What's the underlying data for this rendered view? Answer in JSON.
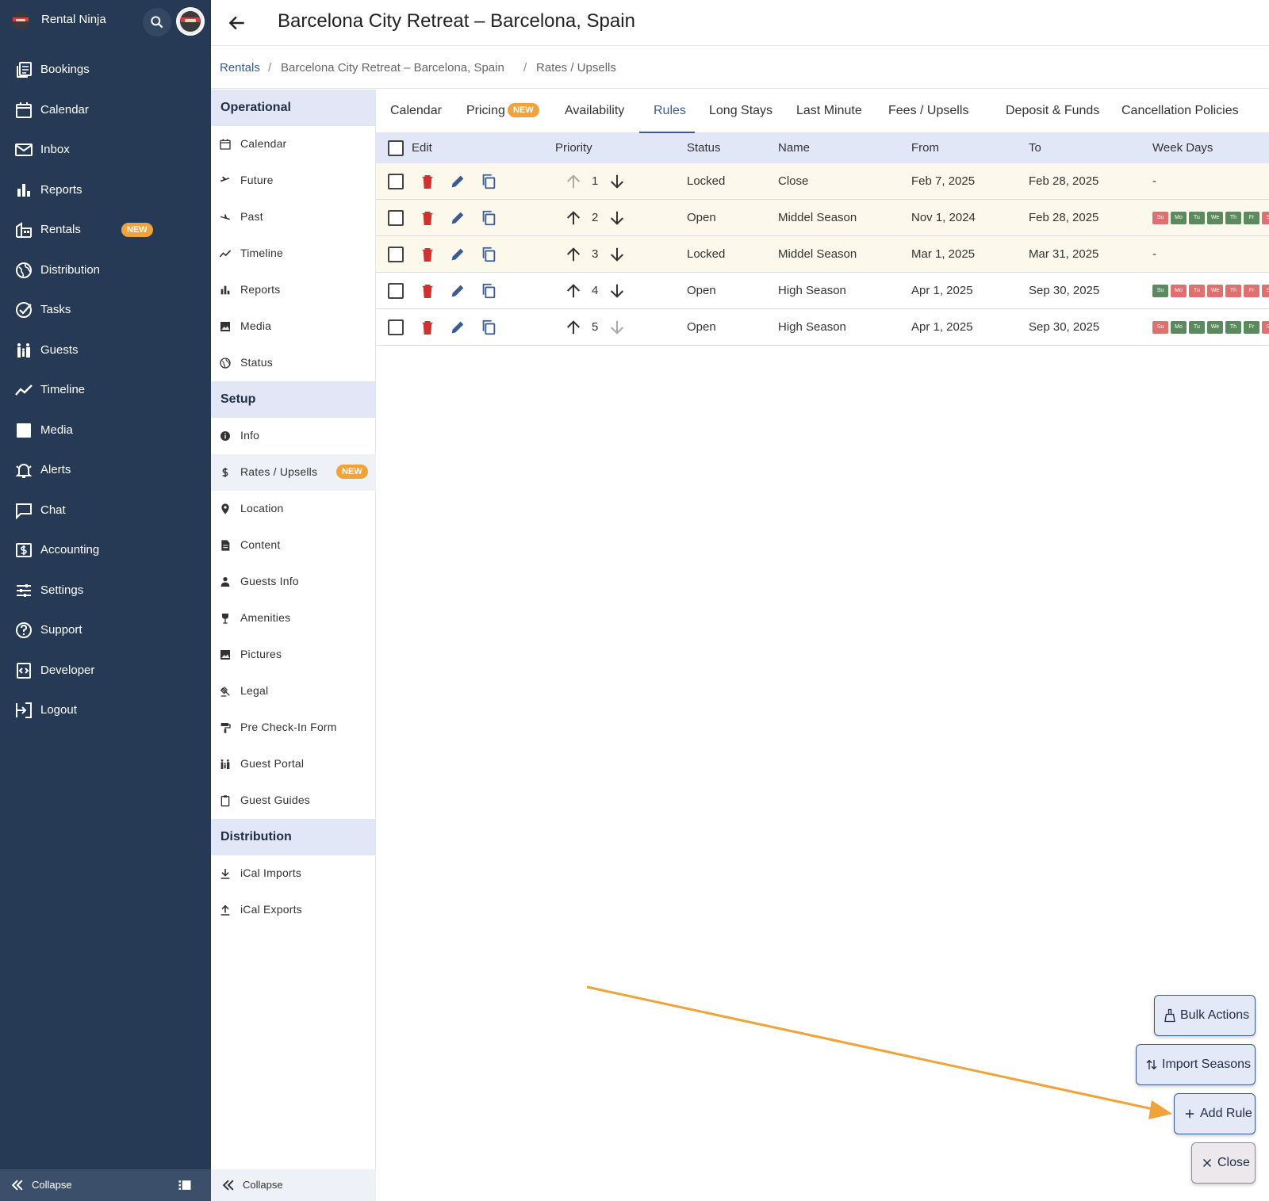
{
  "app": {
    "name": "Rental Ninja"
  },
  "nav": {
    "items": [
      {
        "label": "Bookings",
        "icon": "bookings-icon"
      },
      {
        "label": "Calendar",
        "icon": "calendar-icon"
      },
      {
        "label": "Inbox",
        "icon": "inbox-icon"
      },
      {
        "label": "Reports",
        "icon": "reports-icon"
      },
      {
        "label": "Rentals",
        "icon": "rentals-icon",
        "badge": "NEW"
      },
      {
        "label": "Distribution",
        "icon": "globe-icon"
      },
      {
        "label": "Tasks",
        "icon": "check-circle-icon"
      },
      {
        "label": "Guests",
        "icon": "guests-icon"
      },
      {
        "label": "Timeline",
        "icon": "timeline-icon"
      },
      {
        "label": "Media",
        "icon": "image-icon"
      },
      {
        "label": "Alerts",
        "icon": "bell-icon"
      },
      {
        "label": "Chat",
        "icon": "chat-icon"
      },
      {
        "label": "Accounting",
        "icon": "accounting-icon"
      },
      {
        "label": "Settings",
        "icon": "sliders-icon"
      },
      {
        "label": "Support",
        "icon": "help-icon"
      },
      {
        "label": "Developer",
        "icon": "developer-icon"
      },
      {
        "label": "Logout",
        "icon": "logout-icon"
      }
    ],
    "collapse_label": "Collapse"
  },
  "header": {
    "title": "Barcelona City Retreat – Barcelona, Spain"
  },
  "breadcrumb": [
    "Rentals",
    "Barcelona City Retreat – Barcelona, Spain",
    "Rates / Upsells"
  ],
  "subnav": {
    "sections": [
      {
        "title": "Operational",
        "items": [
          {
            "label": "Calendar",
            "icon": "calendar-icon"
          },
          {
            "label": "Future",
            "icon": "plane-takeoff-icon"
          },
          {
            "label": "Past",
            "icon": "plane-landing-icon"
          },
          {
            "label": "Timeline",
            "icon": "timeline-icon"
          },
          {
            "label": "Reports",
            "icon": "reports-icon"
          },
          {
            "label": "Media",
            "icon": "image-icon"
          },
          {
            "label": "Status",
            "icon": "globe-icon"
          }
        ]
      },
      {
        "title": "Setup",
        "items": [
          {
            "label": "Info",
            "icon": "info-icon"
          },
          {
            "label": "Rates / Upsells",
            "icon": "dollar-icon",
            "badge": "NEW",
            "active": true
          },
          {
            "label": "Location",
            "icon": "pin-icon"
          },
          {
            "label": "Content",
            "icon": "document-icon"
          },
          {
            "label": "Guests Info",
            "icon": "person-icon"
          },
          {
            "label": "Amenities",
            "icon": "wine-icon"
          },
          {
            "label": "Pictures",
            "icon": "image-icon"
          },
          {
            "label": "Legal",
            "icon": "gavel-icon"
          },
          {
            "label": "Pre Check-In Form",
            "icon": "paint-roller-icon"
          },
          {
            "label": "Guest Portal",
            "icon": "family-icon"
          },
          {
            "label": "Guest Guides",
            "icon": "clipboard-icon"
          }
        ]
      },
      {
        "title": "Distribution",
        "items": [
          {
            "label": "iCal Imports",
            "icon": "download-icon"
          },
          {
            "label": "iCal Exports",
            "icon": "upload-icon"
          }
        ]
      }
    ],
    "collapse_label": "Collapse"
  },
  "tabs": [
    {
      "label": "Calendar"
    },
    {
      "label": "Pricing",
      "badge": "NEW"
    },
    {
      "label": "Availability"
    },
    {
      "label": "Rules",
      "active": true
    },
    {
      "label": "Long Stays"
    },
    {
      "label": "Last Minute"
    },
    {
      "label": "Fees / Upsells"
    },
    {
      "label": "Deposit & Funds"
    },
    {
      "label": "Cancellation Policies"
    }
  ],
  "table": {
    "headers": {
      "edit": "Edit",
      "priority": "Priority",
      "status": "Status",
      "name": "Name",
      "from": "From",
      "to": "To",
      "weekdays": "Week Days"
    },
    "rows": [
      {
        "priority": "1",
        "status": "Locked",
        "name": "Close",
        "from": "Feb 7, 2025",
        "to": "Feb 28, 2025",
        "weekdays": "-",
        "days": []
      },
      {
        "priority": "2",
        "status": "Open",
        "name": "Middel Season",
        "from": "Nov 1, 2024",
        "to": "Feb 28, 2025",
        "weekdays": "",
        "days": [
          "off",
          "on",
          "on",
          "on",
          "on",
          "on",
          "off"
        ]
      },
      {
        "priority": "3",
        "status": "Locked",
        "name": "Middel Season",
        "from": "Mar 1, 2025",
        "to": "Mar 31, 2025",
        "weekdays": "-",
        "days": []
      },
      {
        "priority": "4",
        "status": "Open",
        "name": "High Season",
        "from": "Apr 1, 2025",
        "to": "Sep 30, 2025",
        "weekdays": "",
        "days": [
          "on",
          "off",
          "off",
          "off",
          "off",
          "off",
          "off"
        ]
      },
      {
        "priority": "5",
        "status": "Open",
        "name": "High Season",
        "from": "Apr 1, 2025",
        "to": "Sep 30, 2025",
        "weekdays": "",
        "days": [
          "off",
          "on",
          "on",
          "on",
          "on",
          "on",
          "off"
        ]
      }
    ],
    "day_labels": [
      "Su",
      "Mo",
      "Tu",
      "We",
      "Th",
      "Fr",
      "Sa"
    ]
  },
  "actions": {
    "bulk": "Bulk Actions",
    "import": "Import Seasons",
    "add": "Add Rule",
    "close": "Close"
  },
  "colors": {
    "nav_bg": "#273a55",
    "accent": "#3b5b93",
    "badge": "#f0a33a",
    "delete": "#d03030",
    "day_on": "#5b8a5e",
    "day_off": "#e07070",
    "arrow": "#f0a33a"
  }
}
